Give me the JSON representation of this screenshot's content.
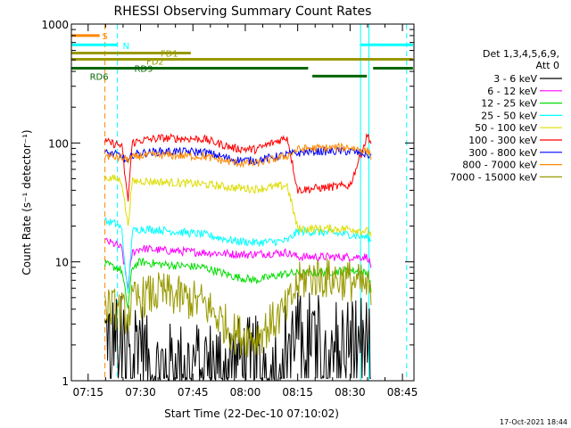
{
  "chart_data": {
    "type": "line",
    "title": "RHESSI Observing Summary Count Rates",
    "xlabel": "Start Time (22-Dec-10 07:10:02)",
    "ylabel": "Count Rate (s⁻¹ detector⁻¹)",
    "y_scale": "log",
    "ylim": [
      1,
      1000
    ],
    "xlim": [
      7.17,
      8.805
    ],
    "x_unit": "hours UT",
    "x_tick_labels": [
      "07:15",
      "07:30",
      "07:45",
      "08:00",
      "08:15",
      "08:30",
      "08:45"
    ],
    "y_tick_labels": [
      "1",
      "10",
      "100",
      "1000"
    ],
    "legend_title_lines": [
      "Det 1,3,4,5,6,9,",
      "Att 0"
    ],
    "series": [
      {
        "name": "3 - 6 keV",
        "color": "#000000",
        "x": [
          7.33,
          7.38,
          7.44,
          7.5,
          7.55,
          7.6,
          8.06,
          8.12,
          8.17,
          8.2,
          8.28,
          8.35,
          8.4,
          8.45,
          8.53,
          8.585,
          8.6
        ],
        "y": [
          2.5,
          2.5,
          2.3,
          2.5,
          1.2,
          1.4,
          1.6,
          1.4,
          1.6,
          2.5,
          2.7,
          2.5,
          2.3,
          2.4,
          2.5,
          2.4,
          1.3
        ]
      },
      {
        "name": "6 - 12 keV",
        "color": "#ff00ff",
        "x": [
          7.33,
          7.38,
          7.41,
          7.44,
          7.46,
          7.5,
          7.6,
          7.8,
          8.0,
          8.2,
          8.25,
          8.3,
          8.5,
          8.585,
          8.6
        ],
        "y": [
          15,
          14,
          13,
          6,
          12,
          13,
          12.5,
          12,
          11.5,
          12,
          11,
          11,
          11,
          11,
          9
        ]
      },
      {
        "name": "12 - 25 keV",
        "color": "#00dd00",
        "x": [
          7.33,
          7.38,
          7.41,
          7.44,
          7.46,
          7.5,
          7.6,
          7.8,
          7.95,
          8.05,
          8.2,
          8.25,
          8.3,
          8.5,
          8.585,
          8.6
        ],
        "y": [
          9.5,
          9,
          8.5,
          4,
          9,
          10,
          9.5,
          9,
          7.5,
          7,
          8,
          8,
          8,
          8.5,
          8,
          6
        ]
      },
      {
        "name": "25 - 50 keV",
        "color": "#00ffff",
        "x": [
          7.33,
          7.38,
          7.41,
          7.44,
          7.46,
          7.5,
          7.6,
          7.8,
          7.95,
          8.05,
          8.2,
          8.25,
          8.3,
          8.5,
          8.585,
          8.6
        ],
        "y": [
          22,
          21,
          19,
          5,
          18,
          19,
          18.5,
          17,
          15,
          14.5,
          15,
          18,
          18,
          17,
          16,
          15
        ]
      },
      {
        "name": "50 - 100 keV",
        "color": "#dddd00",
        "x": [
          7.33,
          7.38,
          7.41,
          7.44,
          7.46,
          7.5,
          7.6,
          7.8,
          7.95,
          8.05,
          8.2,
          8.25,
          8.3,
          8.5,
          8.585,
          8.6
        ],
        "y": [
          51,
          50,
          48,
          20,
          47,
          48,
          47,
          45,
          42,
          41,
          44,
          19,
          19,
          19,
          18,
          17
        ]
      },
      {
        "name": "100 - 300 keV",
        "color": "#ff0000",
        "x": [
          7.33,
          7.38,
          7.41,
          7.44,
          7.46,
          7.5,
          7.6,
          7.8,
          7.95,
          8.05,
          8.2,
          8.25,
          8.3,
          8.5,
          8.585,
          8.6
        ],
        "y": [
          102,
          98,
          95,
          32,
          100,
          105,
          110,
          108,
          90,
          88,
          112,
          40,
          41,
          44,
          118,
          100
        ]
      },
      {
        "name": "300 - 800 keV",
        "color": "#0000ff",
        "x": [
          7.33,
          7.38,
          7.41,
          7.44,
          7.46,
          7.5,
          7.6,
          7.8,
          7.95,
          8.05,
          8.2,
          8.25,
          8.3,
          8.5,
          8.585,
          8.6
        ],
        "y": [
          82,
          80,
          78,
          67,
          80,
          82,
          85,
          84,
          72,
          71,
          80,
          82,
          85,
          85,
          80,
          75
        ]
      },
      {
        "name": "800 - 7000 keV",
        "color": "#ff8800",
        "x": [
          7.33,
          7.38,
          7.41,
          7.44,
          7.46,
          7.5,
          7.6,
          7.8,
          7.95,
          8.05,
          8.2,
          8.25,
          8.3,
          8.5,
          8.585,
          8.6
        ],
        "y": [
          78,
          76,
          75,
          72,
          75,
          78,
          79,
          77,
          68,
          67,
          78,
          88,
          90,
          92,
          85,
          78
        ]
      },
      {
        "name": "7000 - 15000 keV",
        "color": "#999900",
        "x": [
          7.33,
          7.38,
          7.41,
          7.44,
          7.46,
          7.5,
          7.6,
          7.8,
          7.95,
          8.05,
          8.2,
          8.25,
          8.3,
          8.5,
          8.585,
          8.6
        ],
        "y": [
          4.2,
          4.0,
          3.8,
          3.5,
          4.5,
          5.0,
          5.5,
          4.5,
          2.5,
          2.3,
          4.0,
          6.5,
          7.5,
          7.0,
          6.0,
          5.0
        ]
      }
    ],
    "flag_bars": [
      {
        "label": "S",
        "color": "#ff8800",
        "y": 800,
        "segments": [
          [
            7.17,
            7.305
          ]
        ]
      },
      {
        "label": "N",
        "color": "#00ffff",
        "y": 670,
        "segments": [
          [
            7.17,
            7.39
          ],
          [
            8.55,
            8.8
          ]
        ]
      },
      {
        "label": "FD1",
        "color": "#999900",
        "y": 570,
        "segments": [
          [
            7.17,
            7.74
          ]
        ]
      },
      {
        "label": "FD2",
        "color": "#999900",
        "y": 505,
        "segments": [
          [
            7.17,
            8.8
          ]
        ]
      },
      {
        "label": "RD9",
        "color": "#006600",
        "y": 425,
        "segments": [
          [
            7.17,
            8.3
          ],
          [
            8.61,
            8.8
          ]
        ]
      },
      {
        "label": "RD6",
        "color": "#006600",
        "y": 365,
        "segments": [
          [
            8.32,
            8.58
          ]
        ]
      }
    ],
    "vertical_markers": [
      {
        "x": 7.33,
        "color": "#ff8800",
        "style": "dashed"
      },
      {
        "x": 7.39,
        "color": "#00ffff",
        "style": "dashed"
      },
      {
        "x": 7.17,
        "color": "#00ffff",
        "style": "solid"
      },
      {
        "x": 8.55,
        "color": "#00ffff",
        "style": "solid"
      },
      {
        "x": 8.59,
        "color": "#00ffff",
        "style": "solid"
      },
      {
        "x": 8.77,
        "color": "#00ffff",
        "style": "dashed"
      }
    ]
  },
  "footer": {
    "timestamp": "17-Oct-2021 18:44"
  }
}
